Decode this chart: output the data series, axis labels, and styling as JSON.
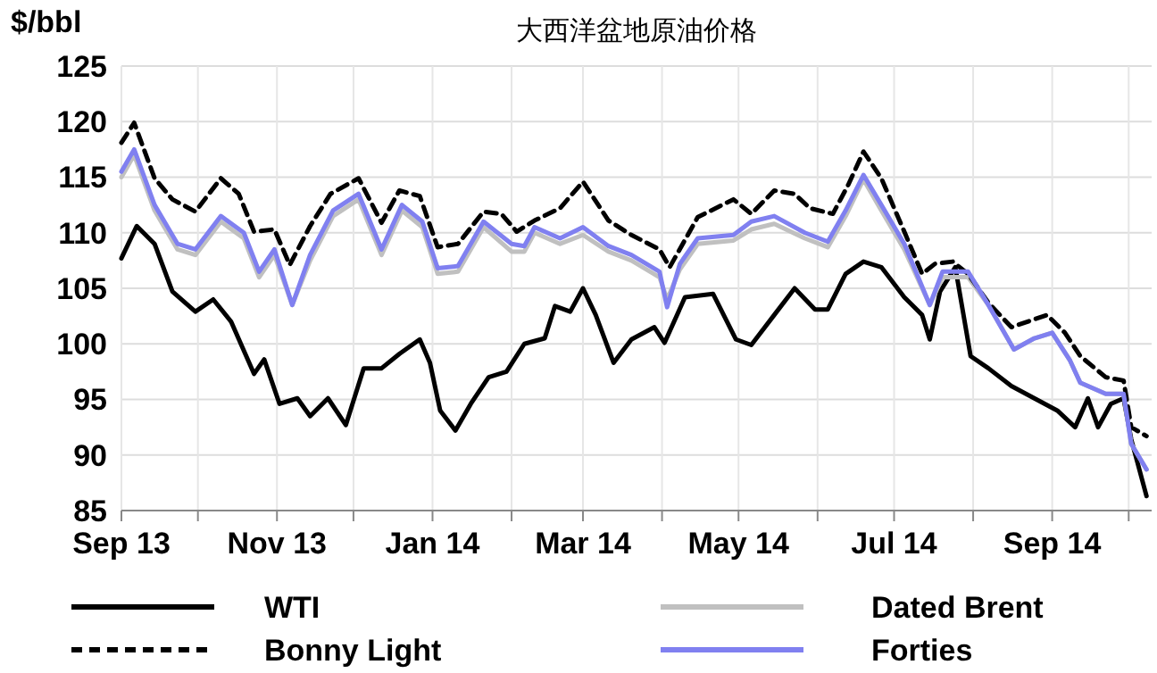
{
  "chart_data": {
    "type": "line",
    "title": "大西洋盆地原油价格",
    "ylabel": "$/bbl",
    "ylim": [
      85,
      125
    ],
    "yticks": [
      85,
      90,
      95,
      100,
      105,
      110,
      115,
      120,
      125
    ],
    "xlim": [
      "2013-09-01",
      "2014-10-10"
    ],
    "xticks": [
      {
        "value": "2013-09-01",
        "label": "Sep 13"
      },
      {
        "value": "2013-10-01",
        "label": null
      },
      {
        "value": "2013-11-01",
        "label": "Nov 13"
      },
      {
        "value": "2013-12-01",
        "label": null
      },
      {
        "value": "2014-01-01",
        "label": "Jan 14"
      },
      {
        "value": "2014-02-01",
        "label": null
      },
      {
        "value": "2014-03-01",
        "label": "Mar 14"
      },
      {
        "value": "2014-04-01",
        "label": null
      },
      {
        "value": "2014-05-01",
        "label": "May 14"
      },
      {
        "value": "2014-06-01",
        "label": null
      },
      {
        "value": "2014-07-01",
        "label": "Jul 14"
      },
      {
        "value": "2014-08-01",
        "label": null
      },
      {
        "value": "2014-09-01",
        "label": "Sep 14"
      },
      {
        "value": "2014-10-01",
        "label": null
      }
    ],
    "grid": true,
    "legend": "bottom",
    "series": [
      {
        "name": "WTI",
        "color": "#000000",
        "line_style": "solid",
        "x": [
          "2013-09-01",
          "2013-09-07",
          "2013-09-14",
          "2013-09-21",
          "2013-09-30",
          "2013-10-07",
          "2013-10-14",
          "2013-10-23",
          "2013-10-27",
          "2013-11-02",
          "2013-11-09",
          "2013-11-14",
          "2013-11-21",
          "2013-11-28",
          "2013-12-05",
          "2013-12-12",
          "2013-12-19",
          "2013-12-27",
          "2013-12-31",
          "2014-01-04",
          "2014-01-10",
          "2014-01-16",
          "2014-01-23",
          "2014-01-30",
          "2014-02-06",
          "2014-02-14",
          "2014-02-18",
          "2014-02-24",
          "2014-03-01",
          "2014-03-06",
          "2014-03-13",
          "2014-03-20",
          "2014-03-29",
          "2014-04-02",
          "2014-04-10",
          "2014-04-21",
          "2014-04-30",
          "2014-05-06",
          "2014-05-15",
          "2014-05-23",
          "2014-05-31",
          "2014-06-05",
          "2014-06-12",
          "2014-06-19",
          "2014-06-26",
          "2014-07-05",
          "2014-07-12",
          "2014-07-15",
          "2014-07-19",
          "2014-07-25",
          "2014-07-31",
          "2014-08-07",
          "2014-08-16",
          "2014-08-25",
          "2014-09-03",
          "2014-09-10",
          "2014-09-15",
          "2014-09-19",
          "2014-09-24",
          "2014-09-29",
          "2014-10-02",
          "2014-10-08"
        ],
        "values": [
          107.7,
          110.6,
          109,
          104.7,
          102.9,
          104,
          102,
          97.3,
          98.6,
          94.6,
          95.1,
          93.5,
          95.1,
          92.7,
          97.8,
          97.8,
          99.1,
          100.4,
          98.3,
          94,
          92.2,
          94.6,
          97,
          97.5,
          100,
          100.5,
          103.4,
          102.9,
          105,
          102.6,
          98.3,
          100.4,
          101.5,
          100.1,
          104.2,
          104.5,
          100.4,
          99.9,
          102.6,
          105,
          103.1,
          103.1,
          106.3,
          107.4,
          106.9,
          104.2,
          102.6,
          100.4,
          104.7,
          106.9,
          98.9,
          97.8,
          96.2,
          95.1,
          94,
          92.5,
          95.1,
          92.5,
          94.6,
          95.1,
          91.4,
          86.3
        ]
      },
      {
        "name": "Dated Brent",
        "color": "#c0c0c0",
        "line_style": "solid",
        "x": [
          "2013-09-01",
          "2013-09-06",
          "2013-09-14",
          "2013-09-23",
          "2013-09-30",
          "2013-10-10",
          "2013-10-19",
          "2013-10-25",
          "2013-10-31",
          "2013-11-07",
          "2013-11-14",
          "2013-11-23",
          "2013-12-03",
          "2013-12-12",
          "2013-12-20",
          "2013-12-28",
          "2014-01-03",
          "2014-01-11",
          "2014-01-21",
          "2014-02-01",
          "2014-02-06",
          "2014-02-10",
          "2014-02-20",
          "2014-03-01",
          "2014-03-11",
          "2014-03-20",
          "2014-03-31",
          "2014-04-03",
          "2014-04-08",
          "2014-04-15",
          "2014-04-29",
          "2014-05-06",
          "2014-05-15",
          "2014-05-27",
          "2014-06-05",
          "2014-06-12",
          "2014-06-19",
          "2014-06-26",
          "2014-07-05",
          "2014-07-15",
          "2014-07-20",
          "2014-07-30",
          "2014-08-07",
          "2014-08-17",
          "2014-08-25",
          "2014-09-01",
          "2014-09-08",
          "2014-09-12",
          "2014-09-22",
          "2014-09-29",
          "2014-10-02",
          "2014-10-08"
        ],
        "values": [
          115,
          117,
          112,
          108.5,
          108,
          111,
          109.5,
          106,
          108,
          103.5,
          107.5,
          111.5,
          113,
          108,
          112,
          110.5,
          106.3,
          106.5,
          110.5,
          108.3,
          108.3,
          110,
          109,
          109.8,
          108.3,
          107.5,
          106,
          104,
          106.7,
          109,
          109.3,
          110.3,
          110.8,
          109.5,
          108.7,
          111.5,
          114.8,
          112,
          108.5,
          103.5,
          106,
          106,
          103.5,
          99.5,
          100.5,
          101,
          98.5,
          96.5,
          95.5,
          95.5,
          91,
          88.7
        ]
      },
      {
        "name": "Bonny Light",
        "color": "#000000",
        "line_style": "dashed",
        "x": [
          "2013-09-01",
          "2013-09-06",
          "2013-09-14",
          "2013-09-21",
          "2013-09-30",
          "2013-10-10",
          "2013-10-17",
          "2013-10-23",
          "2013-10-31",
          "2013-11-06",
          "2013-11-14",
          "2013-11-22",
          "2013-12-03",
          "2013-12-12",
          "2013-12-19",
          "2013-12-27",
          "2014-01-03",
          "2014-01-11",
          "2014-01-21",
          "2014-01-28",
          "2014-02-03",
          "2014-02-10",
          "2014-02-20",
          "2014-03-01",
          "2014-03-11",
          "2014-03-20",
          "2014-03-31",
          "2014-04-04",
          "2014-04-15",
          "2014-04-29",
          "2014-05-06",
          "2014-05-15",
          "2014-05-23",
          "2014-05-29",
          "2014-06-07",
          "2014-06-13",
          "2014-06-19",
          "2014-06-26",
          "2014-07-05",
          "2014-07-12",
          "2014-07-17",
          "2014-07-24",
          "2014-07-30",
          "2014-08-07",
          "2014-08-16",
          "2014-08-30",
          "2014-09-06",
          "2014-09-12",
          "2014-09-22",
          "2014-09-29",
          "2014-10-02",
          "2014-10-08"
        ],
        "values": [
          118.1,
          119.9,
          114.9,
          113,
          111.9,
          114.9,
          113.5,
          110.1,
          110.3,
          107.1,
          110.6,
          113.5,
          114.9,
          110.9,
          113.8,
          113.3,
          108.7,
          109,
          111.9,
          111.7,
          110.1,
          111.1,
          112.2,
          114.6,
          111.1,
          109.8,
          108.5,
          106.9,
          111.4,
          113,
          111.7,
          113.8,
          113.5,
          112.2,
          111.7,
          114.3,
          117.3,
          114.9,
          110.1,
          106.3,
          107.2,
          107.4,
          106.3,
          103.7,
          101.5,
          102.6,
          101,
          98.9,
          97,
          96.7,
          92.5,
          91.7
        ]
      },
      {
        "name": "Forties",
        "color": "#8080f0",
        "line_style": "solid",
        "x": [
          "2013-09-01",
          "2013-09-06",
          "2013-09-14",
          "2013-09-23",
          "2013-09-30",
          "2013-10-10",
          "2013-10-19",
          "2013-10-25",
          "2013-10-31",
          "2013-11-07",
          "2013-11-14",
          "2013-11-23",
          "2013-12-03",
          "2013-12-12",
          "2013-12-20",
          "2013-12-28",
          "2014-01-03",
          "2014-01-11",
          "2014-01-21",
          "2014-02-01",
          "2014-02-06",
          "2014-02-10",
          "2014-02-20",
          "2014-03-01",
          "2014-03-11",
          "2014-03-20",
          "2014-03-31",
          "2014-04-03",
          "2014-04-08",
          "2014-04-15",
          "2014-04-29",
          "2014-05-06",
          "2014-05-15",
          "2014-05-27",
          "2014-06-05",
          "2014-06-12",
          "2014-06-19",
          "2014-06-26",
          "2014-07-05",
          "2014-07-15",
          "2014-07-20",
          "2014-07-30",
          "2014-08-07",
          "2014-08-17",
          "2014-08-25",
          "2014-09-01",
          "2014-09-08",
          "2014-09-12",
          "2014-09-22",
          "2014-09-29",
          "2014-10-02",
          "2014-10-08"
        ],
        "values": [
          115.5,
          117.5,
          112.5,
          109,
          108.5,
          111.5,
          110,
          106.5,
          108.5,
          103.5,
          108,
          112,
          113.5,
          108.5,
          112.5,
          111,
          106.8,
          107,
          111,
          109,
          108.8,
          110.5,
          109.5,
          110.5,
          108.8,
          108,
          106.5,
          103.3,
          107.2,
          109.5,
          109.8,
          111,
          111.5,
          110,
          109.2,
          112,
          115.2,
          112.5,
          109,
          103.5,
          106.5,
          106.5,
          103.5,
          99.5,
          100.5,
          101,
          98.5,
          96.5,
          95.5,
          95.5,
          91,
          88.7
        ]
      }
    ]
  }
}
